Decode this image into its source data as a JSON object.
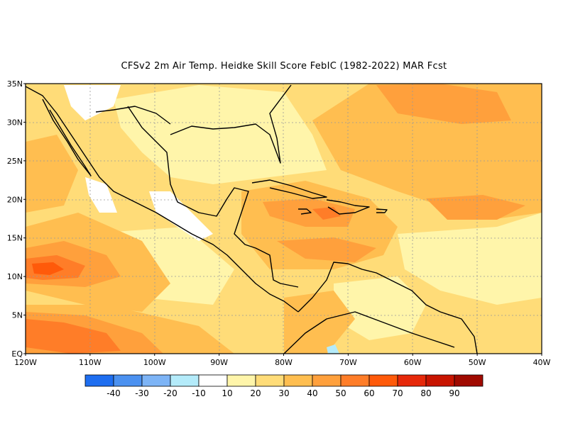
{
  "title": "CFSv2  2m Air Temp. Heidke Skill Score FebIC (1982-2022) MAR Fcst",
  "lat_labels": [
    "35N",
    "30N",
    "25N",
    "20N",
    "15N",
    "10N",
    "5N",
    "EQ"
  ],
  "lon_labels": [
    "120W",
    "110W",
    "100W",
    "90W",
    "80W",
    "70W",
    "60W",
    "50W",
    "40W"
  ],
  "colorbar": {
    "colors": [
      "#1e6ef0",
      "#4b91f0",
      "#7db4f6",
      "#b4ebfa",
      "#ffffff",
      "#fff5aa",
      "#ffdc78",
      "#ffbe50",
      "#ffa03c",
      "#ff7d28",
      "#ff5a0a",
      "#e6280a",
      "#c81400",
      "#a00a00"
    ],
    "labels": [
      "-40",
      "-30",
      "-20",
      "-10",
      "10",
      "20",
      "30",
      "40",
      "50",
      "60",
      "70",
      "80",
      "90"
    ]
  },
  "map_extent": {
    "lon": [
      -120,
      -40
    ],
    "lat": [
      0,
      35
    ]
  },
  "color_levels": {
    "white": "#ffffff",
    "light_yellow": "#fff5aa",
    "yellow": "#ffdc78",
    "light_orange": "#ffbe50",
    "orange": "#ffa03c",
    "dark_orange": "#ff7d28",
    "red_orange": "#ff5a0a",
    "light_blue": "#b4ebfa"
  }
}
